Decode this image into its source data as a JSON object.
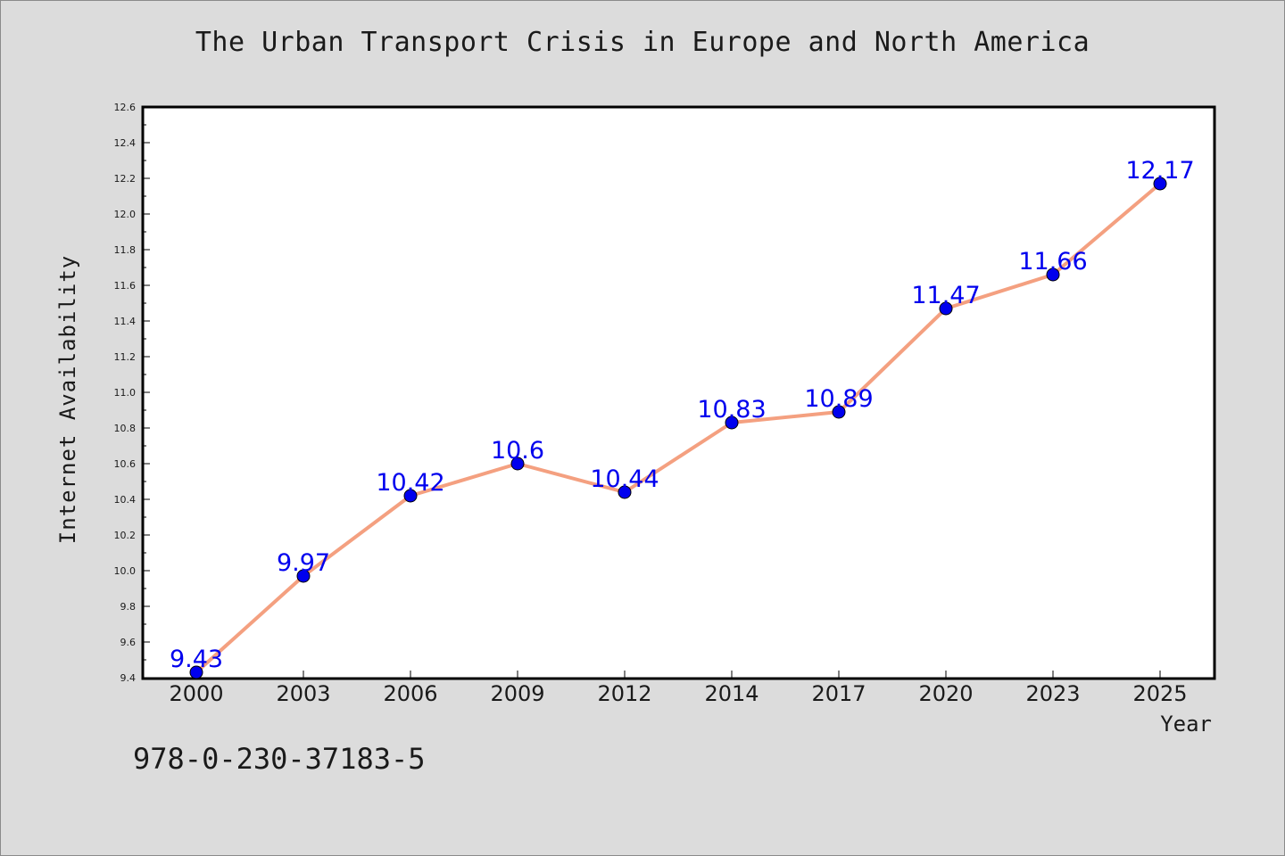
{
  "isbn": "978-0-230-37183-5",
  "colors": {
    "background": "#dcdcdc",
    "plot_background": "#ffffff",
    "line": "#f4a080",
    "marker": "#0000ee",
    "data_label": "#0000ee"
  },
  "chart_data": {
    "type": "line",
    "title": "The Urban Transport Crisis in Europe and North America",
    "xlabel": "Year",
    "ylabel": "Internet Availability",
    "categories": [
      "2000",
      "2003",
      "2006",
      "2009",
      "2012",
      "2014",
      "2017",
      "2020",
      "2023",
      "2025"
    ],
    "series": [
      {
        "values": [
          9.43,
          9.97,
          10.42,
          10.6,
          10.44,
          10.83,
          10.89,
          11.47,
          11.66,
          12.17
        ],
        "labels": [
          "9.43",
          "9.97",
          "10.42",
          "10.6",
          "10.44",
          "10.83",
          "10.89",
          "11.47",
          "11.66",
          "12.17"
        ]
      }
    ],
    "ylim": [
      9.4,
      12.6
    ],
    "yticks": [
      "9.4",
      "9.6",
      "9.8",
      "10.0",
      "10.2",
      "10.4",
      "10.6",
      "10.8",
      "11.0",
      "11.2",
      "11.4",
      "11.6",
      "11.8",
      "12.0",
      "12.2",
      "12.4",
      "12.6"
    ],
    "grid": false,
    "legend": "none"
  }
}
